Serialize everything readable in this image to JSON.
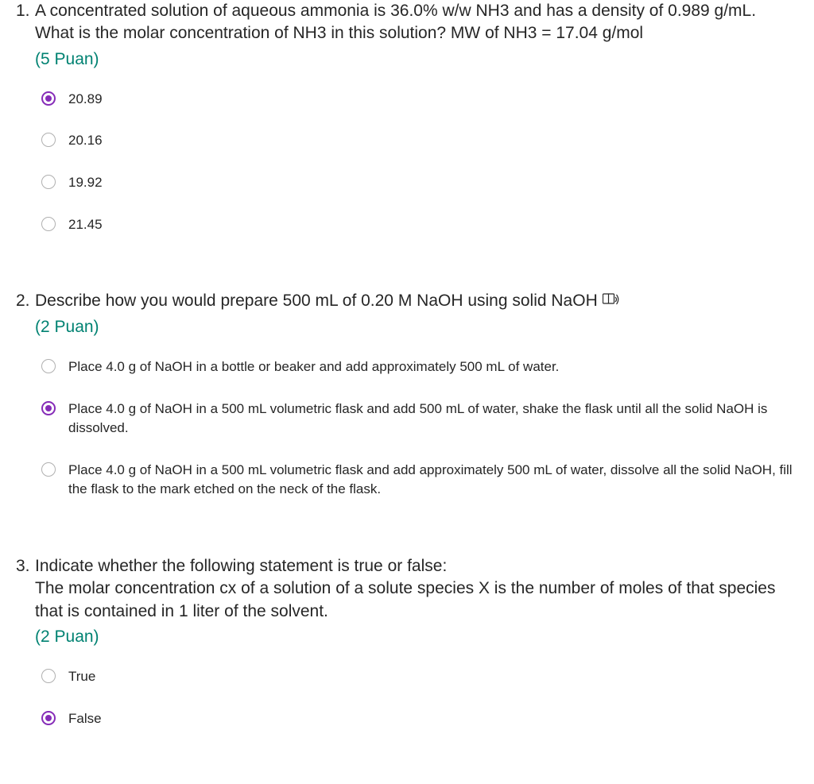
{
  "questions": [
    {
      "number": "1.",
      "text": "A concentrated solution of aqueous ammonia is 36.0% w/w NH3 and has a density of 0.989 g/mL. What is the molar concentration of NH3 in this solution? MW of NH3 = 17.04 g/mol",
      "points": "(5 Puan)",
      "has_icon": false,
      "selected": 0,
      "options": [
        "20.89",
        "20.16",
        "19.92",
        "21.45"
      ]
    },
    {
      "number": "2.",
      "text": "Describe how you would prepare 500 mL of 0.20 M NaOH using solid NaOH",
      "points": "(2 Puan)",
      "has_icon": true,
      "selected": 1,
      "options": [
        "Place 4.0 g of NaOH in a bottle or beaker and add approximately 500 mL of water.",
        "Place 4.0 g of NaOH in a 500 mL volumetric flask and add 500 mL of water, shake the flask until all the solid NaOH is dissolved.",
        "Place 4.0 g of NaOH in a 500 mL volumetric flask and add approximately 500 mL of water, dissolve all the solid NaOH, fill the flask to the mark etched on the neck of the flask."
      ]
    },
    {
      "number": "3.",
      "text": "Indicate whether the following statement is true or false:\nThe molar concentration cx of a solution of a solute species X is the number of moles of that species that is contained in 1 liter of the solvent.",
      "points": "(2 Puan)",
      "has_icon": false,
      "selected": 1,
      "options": [
        "True",
        "False"
      ]
    }
  ],
  "colors": {
    "text": "#262626",
    "teal": "#008272",
    "purple": "#862cb8",
    "radio_border": "#b0b0b0",
    "background": "#ffffff"
  }
}
